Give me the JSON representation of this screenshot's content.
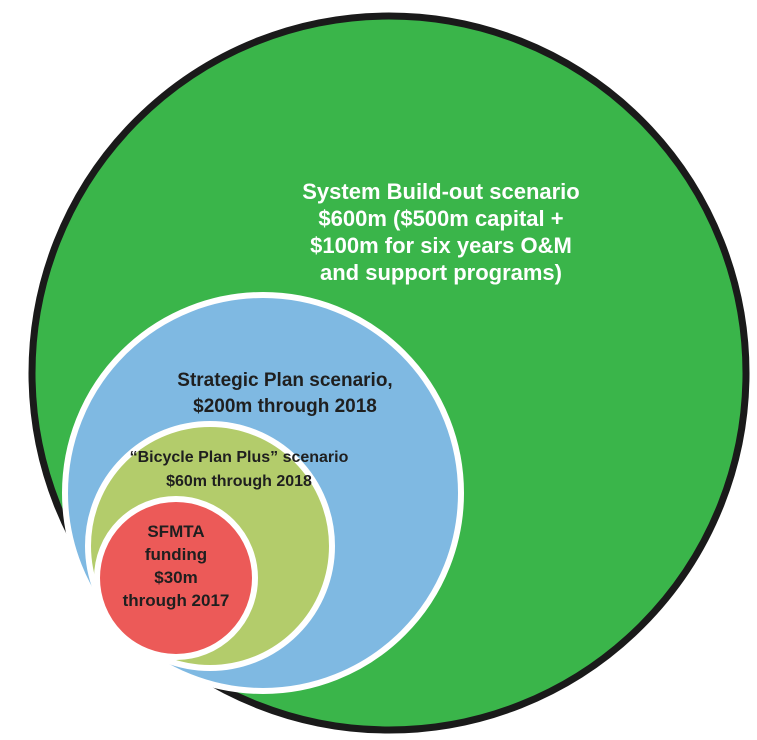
{
  "colors": {
    "outer_fill": "#3ab54a",
    "outer_stroke": "#1a1a1a",
    "strategic_fill": "#7fb9e2",
    "bicycle_fill": "#b3cc6b",
    "sfmta_fill": "#ec5a58",
    "ring_stroke": "#ffffff",
    "light_text": "#ffffff",
    "dark_text": "#1f1f1f"
  },
  "scenarios": {
    "system_buildout": {
      "lines": [
        "System Build-out scenario",
        "$600m ($500m capital +",
        "$100m for six years O&M",
        "and support programs)"
      ]
    },
    "strategic_plan": {
      "lines": [
        "Strategic Plan scenario,",
        "$200m through 2018"
      ]
    },
    "bicycle_plan_plus": {
      "lines": [
        "“Bicycle Plan Plus” scenario",
        "$60m through 2018"
      ]
    },
    "sfmta_funding": {
      "lines": [
        "SFMTA",
        "funding",
        "$30m",
        "through 2017"
      ]
    }
  }
}
